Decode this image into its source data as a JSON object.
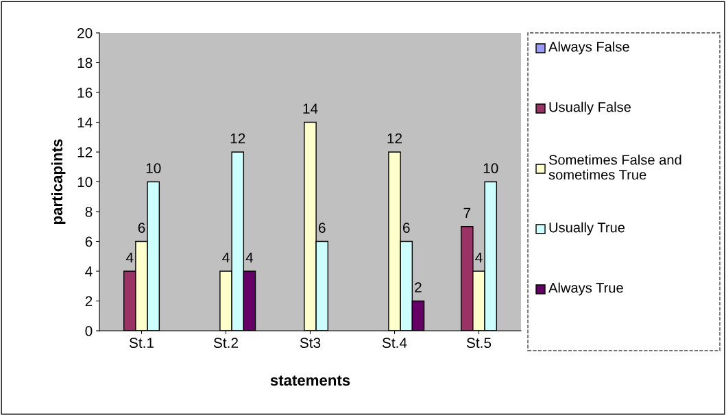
{
  "chart_data": {
    "type": "bar",
    "xlabel": "statements",
    "ylabel": "particapints",
    "categories": [
      "St.1",
      "St.2",
      "St3",
      "St.4",
      "St.5"
    ],
    "series": [
      {
        "name": "Always False",
        "color": "#9999ff",
        "values": [
          null,
          null,
          null,
          null,
          null
        ]
      },
      {
        "name": "Usually False",
        "color": "#993366",
        "values": [
          4,
          null,
          null,
          null,
          7
        ]
      },
      {
        "name": "Sometimes False and sometimes True",
        "color": "#ffffcc",
        "values": [
          6,
          4,
          14,
          12,
          4
        ]
      },
      {
        "name": "Usually True",
        "color": "#ccffff",
        "values": [
          10,
          12,
          6,
          6,
          10
        ]
      },
      {
        "name": "Always True",
        "color": "#660066",
        "values": [
          null,
          4,
          null,
          2,
          null
        ]
      }
    ],
    "ylim": [
      0,
      20
    ],
    "yticks": [
      0,
      2,
      4,
      6,
      8,
      10,
      12,
      14,
      16,
      18,
      20
    ],
    "grid": false,
    "legend": "right",
    "data_labels": true
  }
}
